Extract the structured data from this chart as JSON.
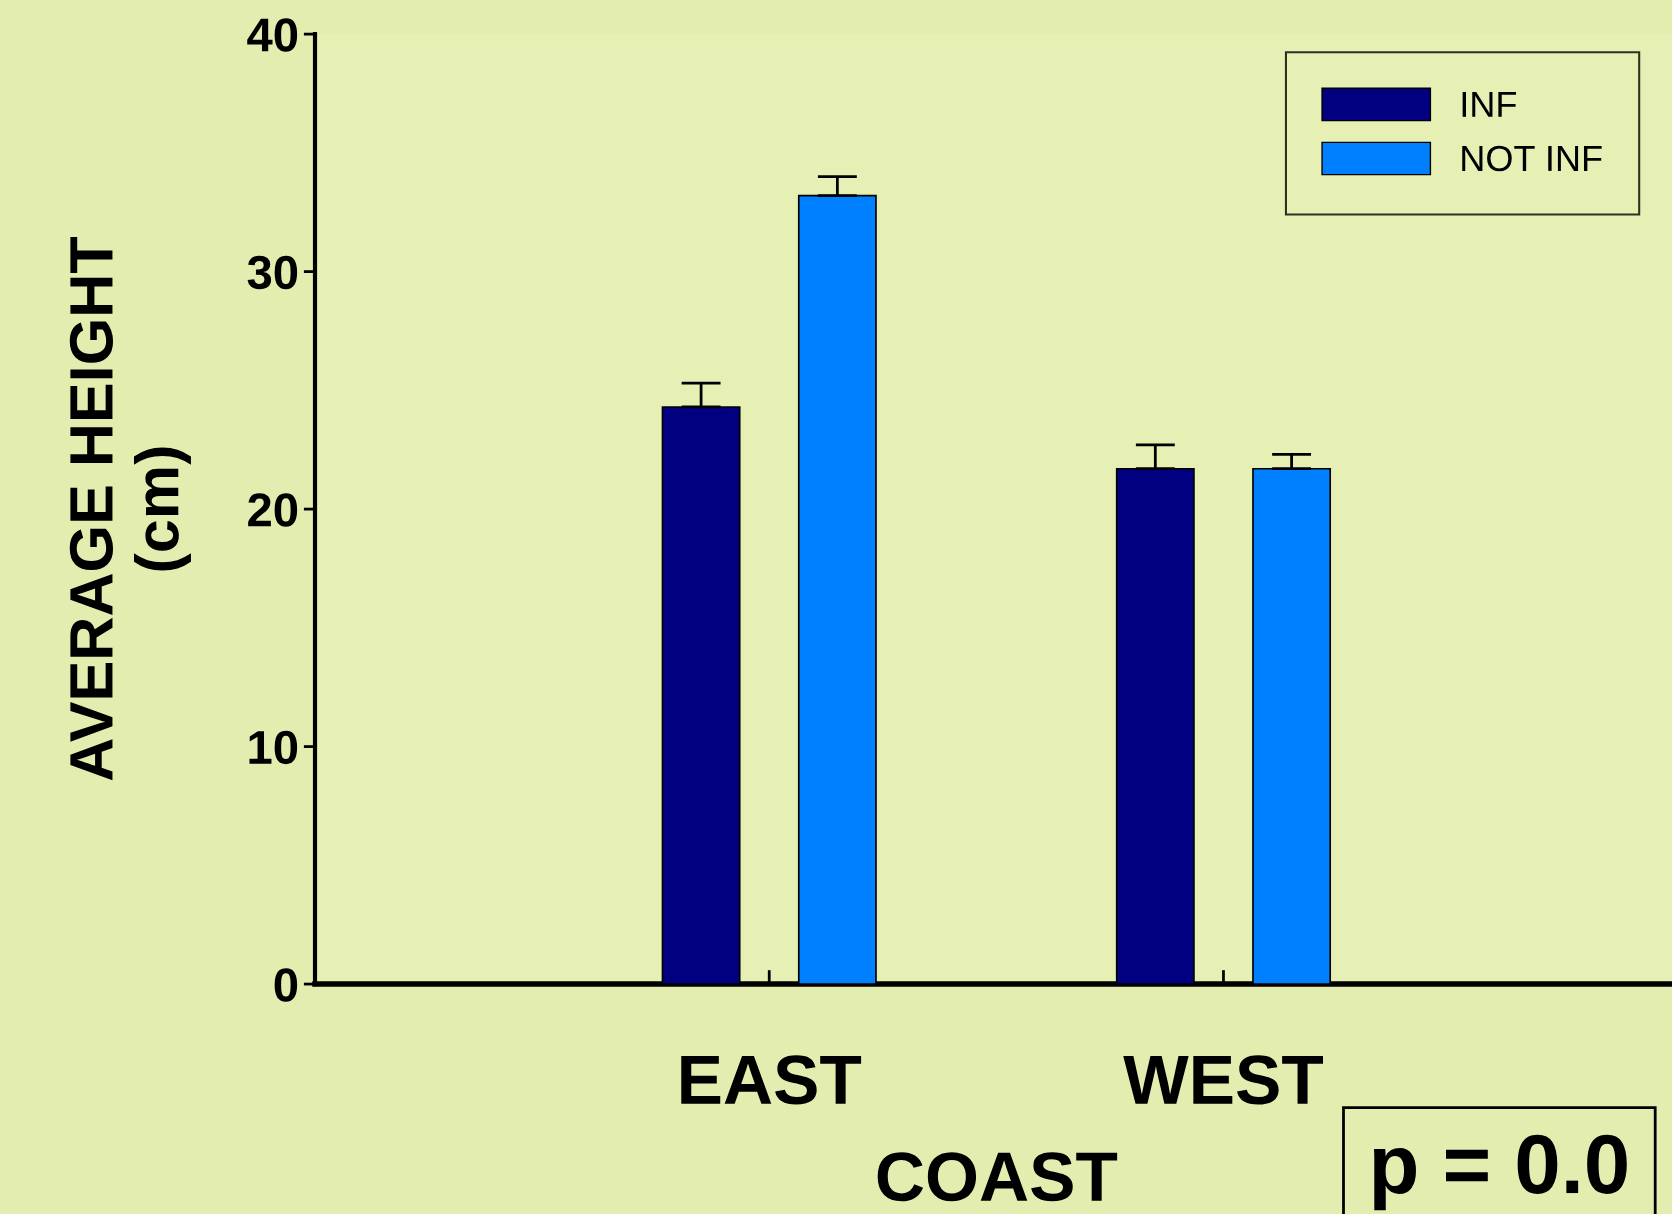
{
  "chart_data": {
    "type": "bar",
    "xlabel": "COAST",
    "ylabel": "AVERAGE HEIGHT\n(cm)",
    "categories": [
      "EAST",
      "WEST"
    ],
    "series": [
      {
        "name": "INF",
        "color": "#000080",
        "values": [
          24.3,
          21.7
        ],
        "errors": [
          [
            24.3,
            25.3
          ],
          [
            21.7,
            22.7
          ]
        ]
      },
      {
        "name": "NOT INF",
        "color": "#0080ff",
        "values": [
          33.2,
          21.7
        ],
        "errors": [
          [
            33.2,
            34.0
          ],
          [
            21.7,
            22.3
          ]
        ]
      }
    ],
    "ylim": [
      0,
      40
    ],
    "yticks": [
      0,
      10,
      20,
      30,
      40
    ],
    "grid": false,
    "legend": "top right",
    "annotations": [
      "p = 0.0"
    ]
  }
}
